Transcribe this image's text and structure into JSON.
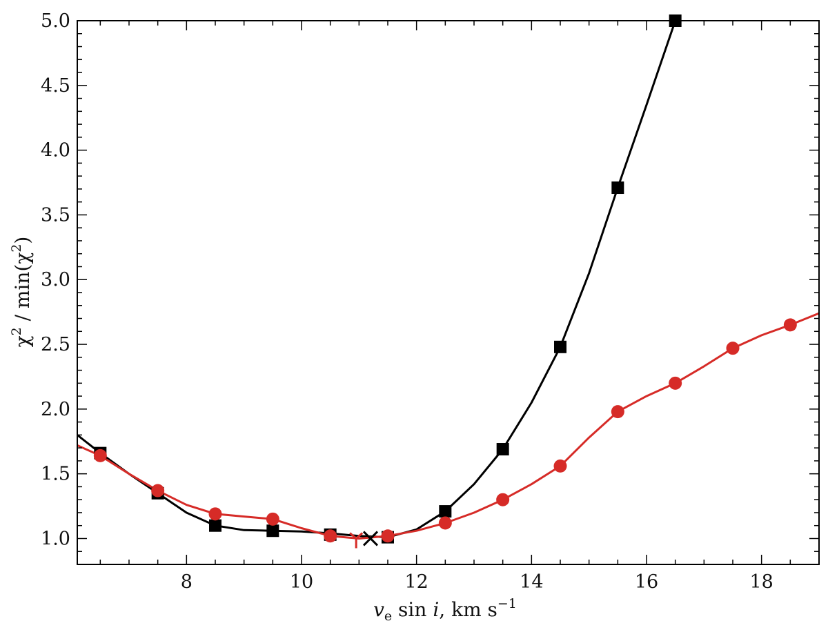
{
  "chart_data": {
    "type": "line",
    "title": "",
    "xlabel": "v_e sin i, km s^-1",
    "ylabel": "χ^2 / min(χ^2)",
    "xlim": [
      6.1,
      19.0
    ],
    "ylim": [
      0.8,
      5.0
    ],
    "x_ticks": [
      8,
      10,
      12,
      14,
      16,
      18
    ],
    "x_tick_labels": [
      "8",
      "10",
      "12",
      "14",
      "16",
      "18"
    ],
    "y_ticks": [
      1.0,
      1.5,
      2.0,
      2.5,
      3.0,
      3.5,
      4.0,
      4.5,
      5.0
    ],
    "y_tick_labels": [
      "1.0",
      "1.5",
      "2.0",
      "2.5",
      "3.0",
      "3.5",
      "4.0",
      "4.5",
      "5.0"
    ],
    "grid": false,
    "series": [
      {
        "marker": "square",
        "color": "#000000",
        "points": [
          {
            "x": 6.5,
            "y": 1.66
          },
          {
            "x": 7.5,
            "y": 1.35
          },
          {
            "x": 8.5,
            "y": 1.1
          },
          {
            "x": 9.5,
            "y": 1.06
          },
          {
            "x": 10.5,
            "y": 1.03
          },
          {
            "x": 11.5,
            "y": 1.01
          },
          {
            "x": 12.5,
            "y": 1.21
          },
          {
            "x": 13.5,
            "y": 1.69
          },
          {
            "x": 14.5,
            "y": 2.48
          },
          {
            "x": 15.5,
            "y": 3.71
          },
          {
            "x": 16.5,
            "y": 5.0
          }
        ],
        "curve": [
          {
            "x": 6.1,
            "y": 1.8
          },
          {
            "x": 6.5,
            "y": 1.66
          },
          {
            "x": 7.0,
            "y": 1.5
          },
          {
            "x": 7.5,
            "y": 1.35
          },
          {
            "x": 8.0,
            "y": 1.2
          },
          {
            "x": 8.5,
            "y": 1.1
          },
          {
            "x": 9.0,
            "y": 1.065
          },
          {
            "x": 9.5,
            "y": 1.06
          },
          {
            "x": 10.0,
            "y": 1.055
          },
          {
            "x": 10.5,
            "y": 1.04
          },
          {
            "x": 11.0,
            "y": 1.02
          },
          {
            "x": 11.5,
            "y": 1.01
          },
          {
            "x": 12.0,
            "y": 1.07
          },
          {
            "x": 12.5,
            "y": 1.21
          },
          {
            "x": 13.0,
            "y": 1.42
          },
          {
            "x": 13.5,
            "y": 1.69
          },
          {
            "x": 14.0,
            "y": 2.05
          },
          {
            "x": 14.5,
            "y": 2.48
          },
          {
            "x": 15.0,
            "y": 3.05
          },
          {
            "x": 15.5,
            "y": 3.71
          },
          {
            "x": 16.0,
            "y": 4.35
          },
          {
            "x": 16.5,
            "y": 5.0
          }
        ],
        "minimum_marker": {
          "symbol": "×",
          "x": 11.2,
          "y": 1.0
        }
      },
      {
        "marker": "circle",
        "color": "#d62b27",
        "points": [
          {
            "x": 6.5,
            "y": 1.64
          },
          {
            "x": 7.5,
            "y": 1.37
          },
          {
            "x": 8.5,
            "y": 1.19
          },
          {
            "x": 9.5,
            "y": 1.15
          },
          {
            "x": 10.5,
            "y": 1.02
          },
          {
            "x": 11.5,
            "y": 1.02
          },
          {
            "x": 12.5,
            "y": 1.12
          },
          {
            "x": 13.5,
            "y": 1.3
          },
          {
            "x": 14.5,
            "y": 1.56
          },
          {
            "x": 15.5,
            "y": 1.98
          },
          {
            "x": 16.5,
            "y": 2.2
          },
          {
            "x": 17.5,
            "y": 2.47
          },
          {
            "x": 18.5,
            "y": 2.65
          }
        ],
        "curve": [
          {
            "x": 6.1,
            "y": 1.72
          },
          {
            "x": 6.5,
            "y": 1.64
          },
          {
            "x": 7.0,
            "y": 1.5
          },
          {
            "x": 7.5,
            "y": 1.37
          },
          {
            "x": 8.0,
            "y": 1.26
          },
          {
            "x": 8.5,
            "y": 1.19
          },
          {
            "x": 9.0,
            "y": 1.17
          },
          {
            "x": 9.5,
            "y": 1.15
          },
          {
            "x": 10.0,
            "y": 1.08
          },
          {
            "x": 10.5,
            "y": 1.02
          },
          {
            "x": 11.0,
            "y": 1.0
          },
          {
            "x": 11.5,
            "y": 1.02
          },
          {
            "x": 12.0,
            "y": 1.06
          },
          {
            "x": 12.5,
            "y": 1.12
          },
          {
            "x": 13.0,
            "y": 1.2
          },
          {
            "x": 13.5,
            "y": 1.3
          },
          {
            "x": 14.0,
            "y": 1.42
          },
          {
            "x": 14.5,
            "y": 1.56
          },
          {
            "x": 15.0,
            "y": 1.78
          },
          {
            "x": 15.5,
            "y": 1.98
          },
          {
            "x": 16.0,
            "y": 2.1
          },
          {
            "x": 16.5,
            "y": 2.2
          },
          {
            "x": 17.0,
            "y": 2.33
          },
          {
            "x": 17.5,
            "y": 2.47
          },
          {
            "x": 18.0,
            "y": 2.57
          },
          {
            "x": 18.5,
            "y": 2.65
          },
          {
            "x": 19.0,
            "y": 2.74
          }
        ],
        "minimum_marker": {
          "symbol": "Y",
          "x": 10.95,
          "y": 1.0
        }
      }
    ]
  }
}
